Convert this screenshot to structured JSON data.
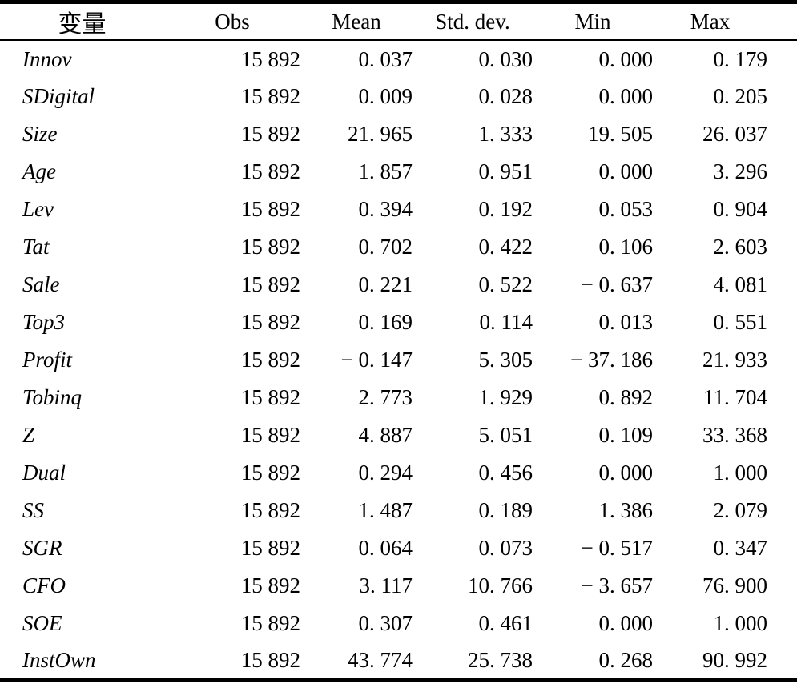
{
  "table": {
    "headers": [
      "变量",
      "Obs",
      "Mean",
      "Std. dev.",
      "Min",
      "Max"
    ],
    "rows": [
      {
        "name": "Innov",
        "values": [
          "15 892",
          "0. 037",
          "0. 030",
          "0. 000",
          "0. 179"
        ]
      },
      {
        "name": "SDigital",
        "values": [
          "15 892",
          "0. 009",
          "0. 028",
          "0. 000",
          "0. 205"
        ]
      },
      {
        "name": "Size",
        "values": [
          "15 892",
          "21. 965",
          "1. 333",
          "19. 505",
          "26. 037"
        ]
      },
      {
        "name": "Age",
        "values": [
          "15 892",
          "1. 857",
          "0. 951",
          "0. 000",
          "3. 296"
        ]
      },
      {
        "name": "Lev",
        "values": [
          "15 892",
          "0. 394",
          "0. 192",
          "0. 053",
          "0. 904"
        ]
      },
      {
        "name": "Tat",
        "values": [
          "15 892",
          "0. 702",
          "0. 422",
          "0. 106",
          "2. 603"
        ]
      },
      {
        "name": "Sale",
        "values": [
          "15 892",
          "0. 221",
          "0. 522",
          "− 0. 637",
          "4. 081"
        ]
      },
      {
        "name": "Top3",
        "values": [
          "15 892",
          "0. 169",
          "0. 114",
          "0. 013",
          "0. 551"
        ]
      },
      {
        "name": "Profit",
        "values": [
          "15 892",
          "− 0. 147",
          "5. 305",
          "− 37. 186",
          "21. 933"
        ]
      },
      {
        "name": "Tobinq",
        "values": [
          "15 892",
          "2. 773",
          "1. 929",
          "0. 892",
          "11. 704"
        ]
      },
      {
        "name": "Z",
        "values": [
          "15 892",
          "4. 887",
          "5. 051",
          "0. 109",
          "33. 368"
        ]
      },
      {
        "name": "Dual",
        "values": [
          "15 892",
          "0. 294",
          "0. 456",
          "0. 000",
          "1. 000"
        ]
      },
      {
        "name": "SS",
        "values": [
          "15 892",
          "1. 487",
          "0. 189",
          "1. 386",
          "2. 079"
        ]
      },
      {
        "name": "SGR",
        "values": [
          "15 892",
          "0. 064",
          "0. 073",
          "− 0. 517",
          "0. 347"
        ]
      },
      {
        "name": "CFO",
        "values": [
          "15 892",
          "3. 117",
          "10. 766",
          "− 3. 657",
          "76. 900"
        ]
      },
      {
        "name": "SOE",
        "values": [
          "15 892",
          "0. 307",
          "0. 461",
          "0. 000",
          "1. 000"
        ]
      },
      {
        "name": "InstOwn",
        "values": [
          "15 892",
          "43. 774",
          "25. 738",
          "0. 268",
          "90. 992"
        ]
      }
    ]
  }
}
